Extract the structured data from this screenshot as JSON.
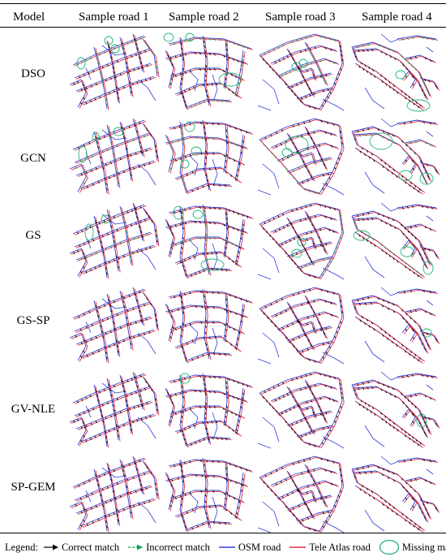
{
  "header": {
    "model_label": "Model",
    "columns": [
      "Sample road 1",
      "Sample road 2",
      "Sample road 3",
      "Sample road 4"
    ]
  },
  "rows": [
    {
      "label": "DSO"
    },
    {
      "label": "GCN"
    },
    {
      "label": "GS"
    },
    {
      "label": "GS-SP"
    },
    {
      "label": "GV-NLE"
    },
    {
      "label": "SP-GEM"
    }
  ],
  "legend": {
    "title": "Legend:",
    "items": [
      {
        "label": "Correct match",
        "icon": "black-arrow-icon"
      },
      {
        "label": "Incorrect match",
        "icon": "green-arrow-icon"
      },
      {
        "label": "OSM road",
        "icon": "blue-line-icon"
      },
      {
        "label": "Tele Atlas road",
        "icon": "red-line-icon"
      },
      {
        "label": "Missing match",
        "icon": "green-circle-icon"
      }
    ]
  },
  "colors": {
    "osm_road": "#2f3fd6",
    "tele_atlas_road": "#e0303c",
    "correct_match": "#000000",
    "incorrect_match": "#10a050",
    "missing_match": "#22b573"
  }
}
